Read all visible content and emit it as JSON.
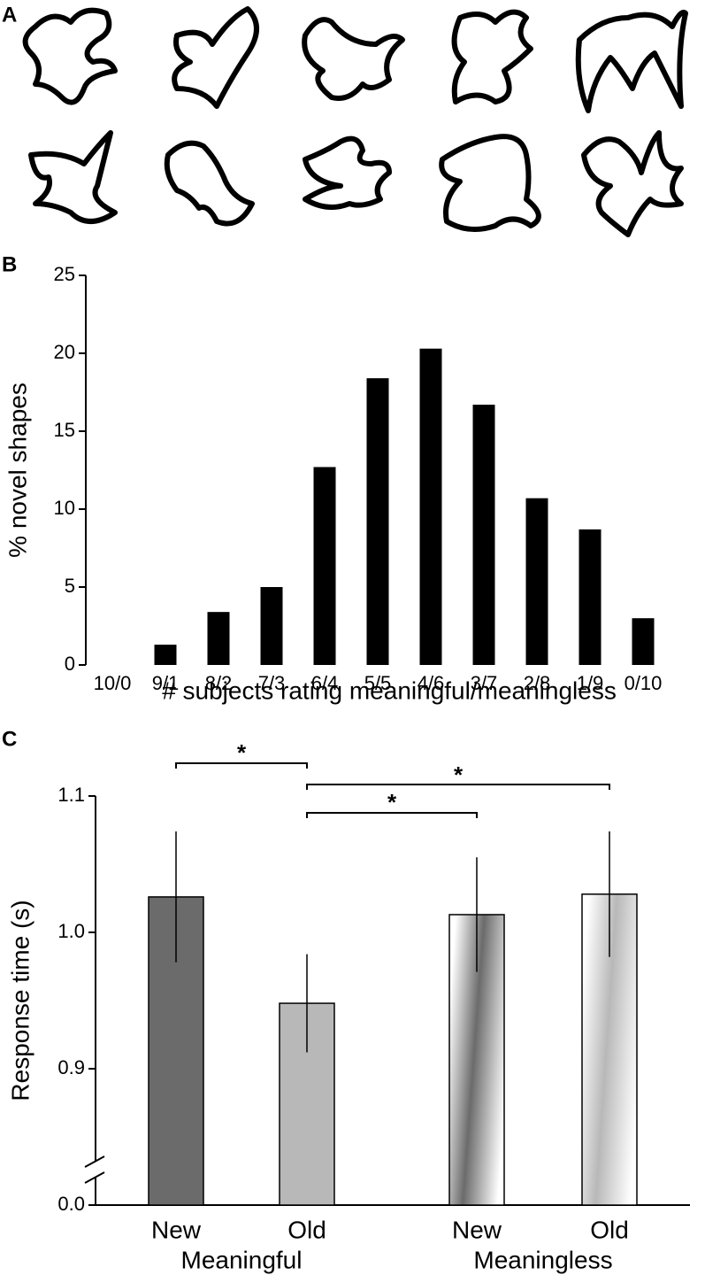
{
  "panel_labels": [
    "A",
    "B",
    "C"
  ],
  "chart_data": [
    {
      "type": "bar",
      "y_label": "% novel shapes",
      "x_label": "# subjects rating meaningful/meaningless",
      "categories": [
        "10/0",
        "9/1",
        "8/2",
        "7/3",
        "6/4",
        "5/5",
        "4/6",
        "3/7",
        "2/8",
        "1/9",
        "0/10"
      ],
      "values": [
        0,
        1.3,
        3.4,
        5.0,
        12.7,
        18.4,
        20.3,
        16.7,
        10.7,
        8.7,
        3.0
      ],
      "color": "#000000",
      "ylim": [
        0,
        25
      ],
      "yticks": [
        0,
        5,
        10,
        15,
        20,
        25
      ]
    },
    {
      "type": "grouped-bar",
      "y_label": "Response time (s)",
      "groups": [
        {
          "name": "Meaningful",
          "categories": [
            "New",
            "Old"
          ],
          "values": [
            1.026,
            0.948
          ],
          "errors": [
            0.048,
            0.036
          ],
          "colors": [
            "#6b6b6b",
            "#b8b8b8"
          ],
          "gradient": false
        },
        {
          "name": "Meaningless",
          "categories": [
            "New",
            "Old"
          ],
          "values": [
            1.013,
            1.028
          ],
          "errors": [
            0.042,
            0.046
          ],
          "colors": [
            "#6b6b6b",
            "#b8b8b8"
          ],
          "gradient": true
        }
      ],
      "annotations": [
        "*",
        "*",
        "*"
      ],
      "ylim": [
        0,
        1.1
      ],
      "axis_break": [
        0,
        0.85
      ],
      "yticks": [
        {
          "value": 0,
          "label": "0.0"
        },
        0.9,
        {
          "value": 1,
          "label": "1.0"
        },
        1.1
      ]
    }
  ]
}
